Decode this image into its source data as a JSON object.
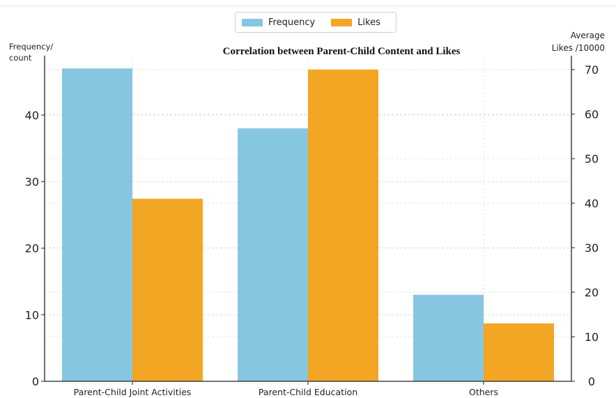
{
  "chart_data": {
    "type": "bar",
    "title": "Correlation between Parent-Child Content and Likes",
    "categories": [
      "Parent-Child Joint Activities",
      "Parent-Child Education",
      "Others"
    ],
    "series": [
      {
        "name": "Frequency",
        "axis": "left",
        "color": "#87c6e1",
        "values": [
          47,
          38,
          13
        ]
      },
      {
        "name": "Likes",
        "axis": "right",
        "color": "#f3a623",
        "values": [
          41,
          70,
          13
        ]
      }
    ],
    "ylabel_left": [
      "Frequency/",
      "count"
    ],
    "ylabel_right": [
      "Average",
      "Likes /10000"
    ],
    "ylim_left": [
      0,
      48.5
    ],
    "ylim_right": [
      0,
      72.5
    ],
    "yticks_left": [
      0,
      10,
      20,
      30,
      40
    ],
    "yticks_right": [
      0,
      10,
      20,
      30,
      40,
      50,
      60,
      70
    ],
    "grid": true,
    "legend_position": "top-center"
  }
}
